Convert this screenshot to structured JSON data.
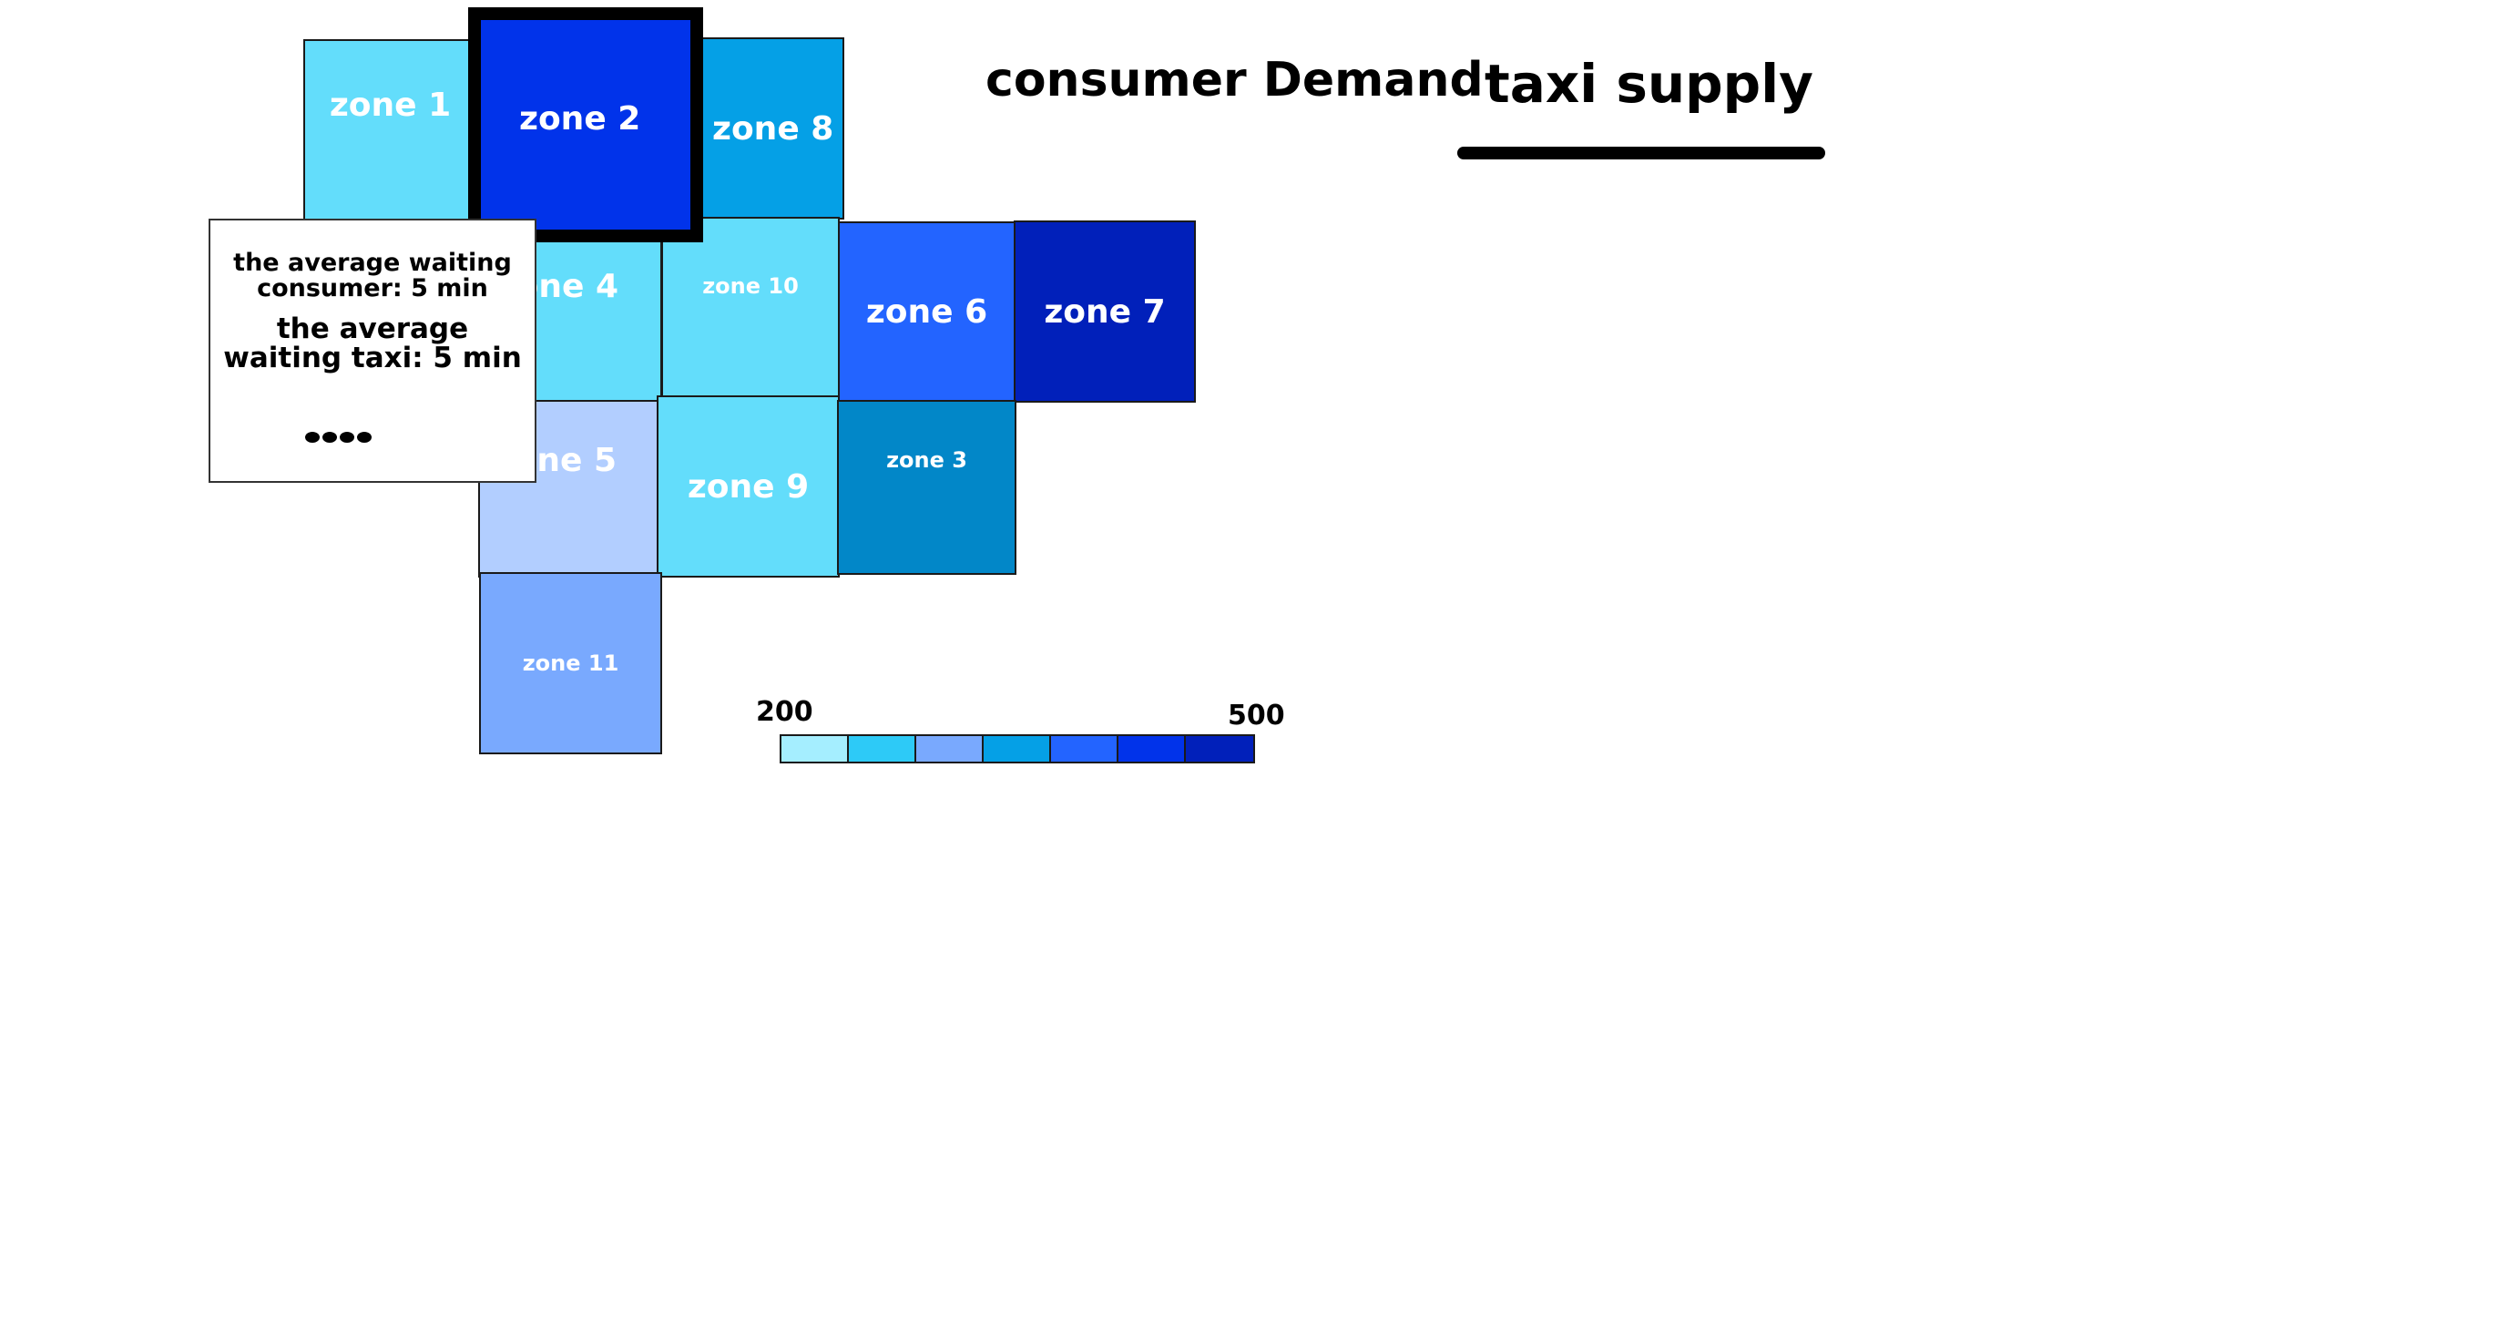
{
  "tabs": {
    "consumer_demand": "consumer Demand",
    "taxi_supply": "taxi supply",
    "active": "taxi supply"
  },
  "zones": [
    {
      "id": "zone-1",
      "label": "zone 1",
      "color": "#63DDFB"
    },
    {
      "id": "zone-2",
      "label": "zone 2",
      "color": "#0133EA",
      "selected": true
    },
    {
      "id": "zone-8",
      "label": "zone 8",
      "color": "#05A0E6"
    },
    {
      "id": "zone-4",
      "label": "zone 4",
      "color": "#63DDFB"
    },
    {
      "id": "zone-10",
      "label": "zone 10",
      "color": "#63DDFB"
    },
    {
      "id": "zone-6",
      "label": "zone 6",
      "color": "#2364FF"
    },
    {
      "id": "zone-7",
      "label": "zone 7",
      "color": "#0120BA"
    },
    {
      "id": "zone-5",
      "label": "zone 5",
      "color": "#B2CEFF"
    },
    {
      "id": "zone-9",
      "label": "zone 9",
      "color": "#63DDFB"
    },
    {
      "id": "zone-3",
      "label": "zone 3",
      "color": "#0287C8"
    },
    {
      "id": "zone-11",
      "label": "zone 11",
      "color": "#79A9FE"
    }
  ],
  "tooltip": {
    "line1": "the average waiting",
    "line2": "consumer: 5 min",
    "line3": "the average",
    "line4": "waiting taxi: 5 min",
    "more_glyph": "more-dots"
  },
  "legend": {
    "min_label": "200",
    "max_label": "500",
    "colors": [
      "#A5EEFF",
      "#2DCAF7",
      "#79A9FE",
      "#05A0E6",
      "#2364FF",
      "#0133EA",
      "#0120BA"
    ]
  }
}
